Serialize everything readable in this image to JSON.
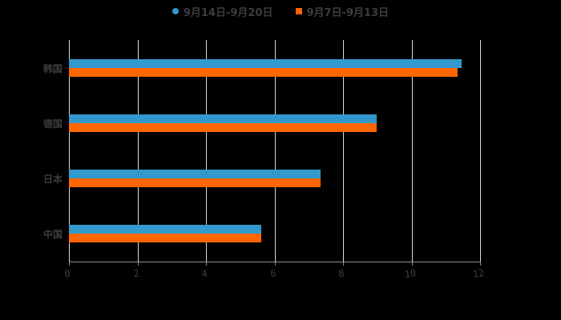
{
  "chart_data": {
    "type": "bar",
    "orientation": "horizontal",
    "title": "",
    "xlabel": "",
    "ylabel": "",
    "categories": [
      "韩国",
      "德国",
      "日本",
      "中国"
    ],
    "series": [
      {
        "name": "9月14日-9月20日",
        "color": "#3399cc",
        "values": [
          11.46,
          8.98,
          7.35,
          5.61
        ]
      },
      {
        "name": "9月7日-9月13日",
        "color": "#ff6600",
        "values": [
          11.35,
          8.98,
          7.35,
          5.61
        ]
      }
    ],
    "xlim": [
      0,
      12
    ],
    "xticks": [
      "0",
      "2",
      "4",
      "6",
      "8",
      "10",
      "12"
    ],
    "grid": true,
    "legend_position": "top",
    "background": "#000000"
  },
  "legend": {
    "items": [
      {
        "label": "9月14日-9月20日",
        "color": "#3399cc",
        "marker": "circle"
      },
      {
        "label": "9月7日-9月13日",
        "color": "#ff6600",
        "marker": "square"
      }
    ]
  }
}
